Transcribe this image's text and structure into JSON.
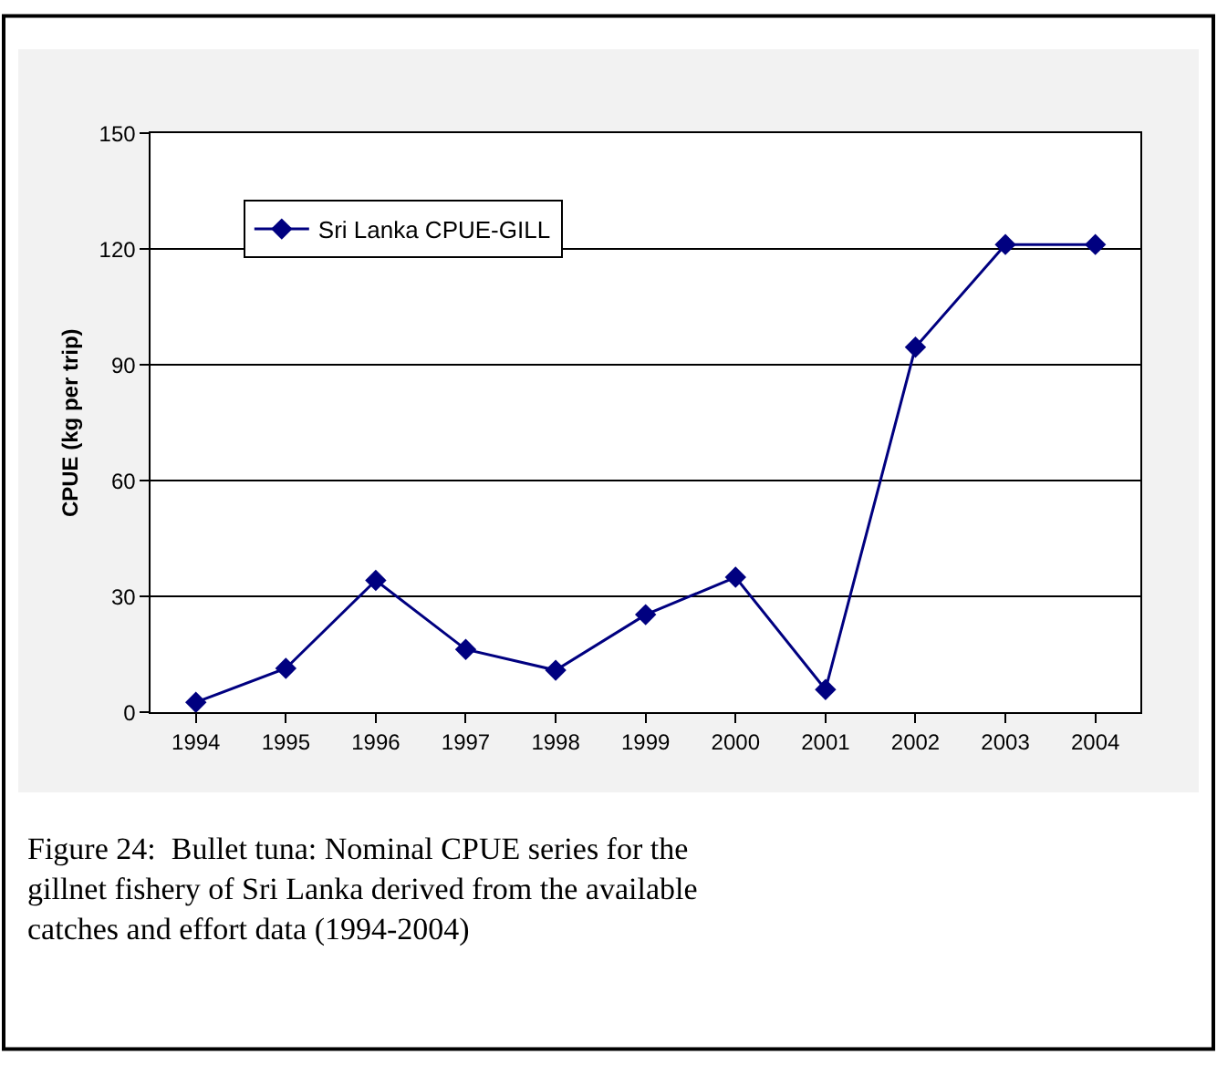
{
  "chart_data": {
    "type": "line",
    "ylabel": "CPUE (kg per trip)",
    "categories": [
      "1994",
      "1995",
      "1996",
      "1997",
      "1998",
      "1999",
      "2000",
      "2001",
      "2002",
      "2003",
      "2004"
    ],
    "series": [
      {
        "name": "Sri Lanka CPUE-GILL",
        "color": "#000080",
        "values": [
          2.6,
          11.4,
          34.2,
          16.3,
          10.9,
          25.3,
          35,
          5.9,
          94.6,
          121.2,
          121.2
        ]
      }
    ],
    "ylim": [
      0,
      150
    ],
    "yticks": [
      0,
      30,
      60,
      90,
      120,
      150
    ],
    "grid": "y",
    "legend": "top left",
    "marker": "diamond",
    "line_style": "solid",
    "annotations": [
      "Figure 24:  Bullet tuna: Nominal CPUE series for the gillnet fishery of Sri Lanka derived from the available catches and effort data (1994-2004)"
    ]
  }
}
